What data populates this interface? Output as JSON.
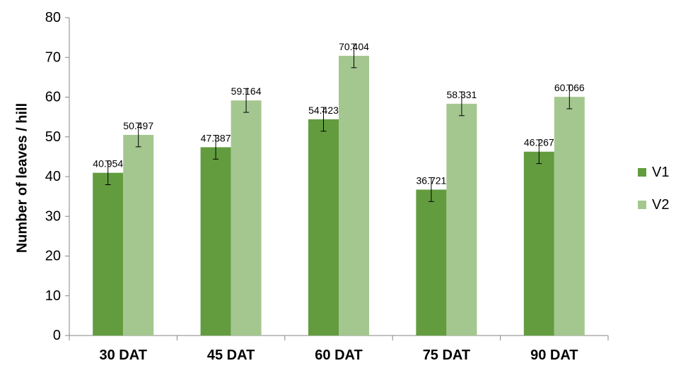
{
  "chart_data": {
    "type": "bar",
    "categories": [
      "30 DAT",
      "45 DAT",
      "60 DAT",
      "75 DAT",
      "90 DAT"
    ],
    "series": [
      {
        "name": "V1",
        "color": "#629c3f",
        "values": [
          40.954,
          47.387,
          54.423,
          36.721,
          46.267
        ],
        "labels": [
          "40.954",
          "47.387",
          "54.423",
          "36.721",
          "46.267"
        ],
        "error": 3
      },
      {
        "name": "V2",
        "color": "#a4c790",
        "values": [
          50.497,
          59.164,
          70.404,
          58.331,
          60.066
        ],
        "labels": [
          "50.497",
          "59.164",
          "70.404",
          "58.331",
          "60.066"
        ],
        "error": 3
      }
    ],
    "ylabel": "Number of leaves / hill",
    "xlabel": "",
    "ylim": [
      0,
      80
    ],
    "yticks": [
      "0",
      "10",
      "20",
      "30",
      "40",
      "50",
      "60",
      "70",
      "80"
    ],
    "grid": false,
    "legend_position": "right"
  }
}
